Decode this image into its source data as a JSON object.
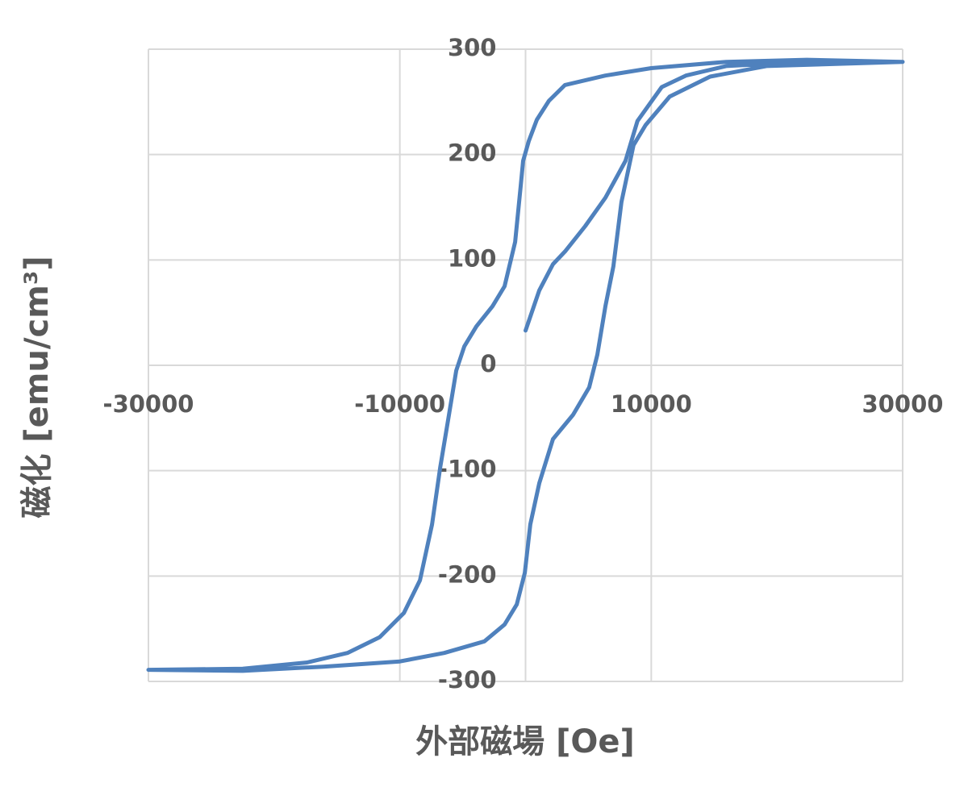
{
  "chart_data": {
    "type": "line",
    "x_label": "外部磁場 [Oe]",
    "y_label": "磁化 [emu/cm³]",
    "xlim": [
      -30000,
      30000
    ],
    "ylim": [
      -300,
      300
    ],
    "xticks": [
      -30000,
      -10000,
      10000,
      30000
    ],
    "yticks": [
      -300,
      -200,
      -100,
      0,
      100,
      200,
      300
    ],
    "grid": true,
    "x": [
      0,
      1090,
      2180,
      3140,
      4740,
      6350,
      7950,
      8910,
      10830,
      12760,
      15960,
      22370,
      30000,
      22370,
      15960,
      10000,
      6350,
      3140,
      1860,
      900,
      260,
      -190,
      -380,
      -830,
      -1670,
      -2630,
      -3910,
      -4870,
      -5510,
      -6150,
      -6790,
      -7440,
      -8400,
      -9680,
      -11600,
      -14170,
      -17370,
      -22500,
      -30000,
      -22500,
      -16090,
      -10000,
      -6470,
      -3270,
      -1670,
      -700,
      -60,
      380,
      1090,
      2180,
      3780,
      5060,
      5710,
      6350,
      6990,
      7630,
      8590,
      9550,
      11470,
      14680,
      19170,
      30000
    ],
    "series": [
      {
        "color": "#4f81bd",
        "values": [
          33,
          71,
          96,
          108,
          132,
          159,
          194,
          232,
          264,
          275,
          284,
          288,
          288,
          290,
          288,
          282,
          275,
          266,
          251,
          233,
          213,
          194,
          171,
          117,
          75,
          56,
          37,
          18,
          -5,
          -51,
          -97,
          -151,
          -204,
          -235,
          -258,
          -273,
          -282,
          -288,
          -289,
          -290,
          -286,
          -281,
          -273,
          -262,
          -246,
          -227,
          -197,
          -151,
          -112,
          -70,
          -47,
          -21,
          10,
          56,
          94,
          155,
          209,
          228,
          255,
          274,
          284,
          288
        ]
      }
    ]
  }
}
